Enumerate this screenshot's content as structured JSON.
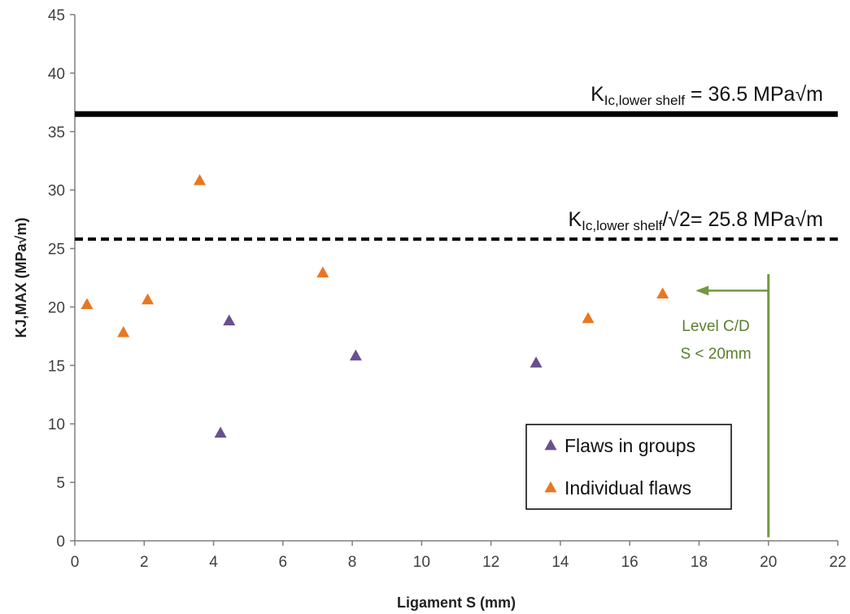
{
  "chart_data": {
    "type": "scatter",
    "xlabel": "Ligament S (mm)",
    "ylabel": "KJ,MAX  (MPa√m)",
    "xlim": [
      0,
      22
    ],
    "ylim": [
      0,
      45
    ],
    "xticks": [
      0,
      2,
      4,
      6,
      8,
      10,
      12,
      14,
      16,
      18,
      20,
      22
    ],
    "yticks": [
      0,
      5,
      10,
      15,
      20,
      25,
      30,
      35,
      40,
      45
    ],
    "grid": false,
    "legend_position": "bottom-right",
    "series": [
      {
        "name": "Flaws in groups",
        "color": "#6a4f8f",
        "marker": "triangle",
        "points": [
          [
            4.2,
            9.2
          ],
          [
            4.45,
            18.8
          ],
          [
            8.1,
            15.8
          ],
          [
            13.3,
            15.2
          ]
        ]
      },
      {
        "name": "Individual flaws",
        "color": "#e87722",
        "marker": "triangle",
        "points": [
          [
            0.35,
            20.2
          ],
          [
            1.4,
            17.8
          ],
          [
            2.1,
            20.6
          ],
          [
            3.6,
            30.8
          ],
          [
            7.15,
            22.9
          ],
          [
            14.8,
            19.0
          ],
          [
            16.95,
            21.1
          ]
        ]
      }
    ],
    "reference_lines": [
      {
        "y": 36.5,
        "style": "solid",
        "color": "#000000",
        "label_main": "K",
        "label_sub": "Ic,lower shelf",
        "label_rest": " = 36.5 MPa√m"
      },
      {
        "y": 25.8,
        "style": "dashed",
        "color": "#000000",
        "label_main": "K",
        "label_sub": "Ic,lower shelf",
        "label_rest": "/√2= 25.8 MPa√m"
      }
    ],
    "marker_line": {
      "x": 20,
      "y_top": 22.8,
      "y_bottom": 0.3,
      "arrow_y": 21.4,
      "arrow_x_end": 17.9,
      "color": "#6f9a3f",
      "label_line1": "Level C/D",
      "label_line2": "S < 20mm"
    }
  }
}
